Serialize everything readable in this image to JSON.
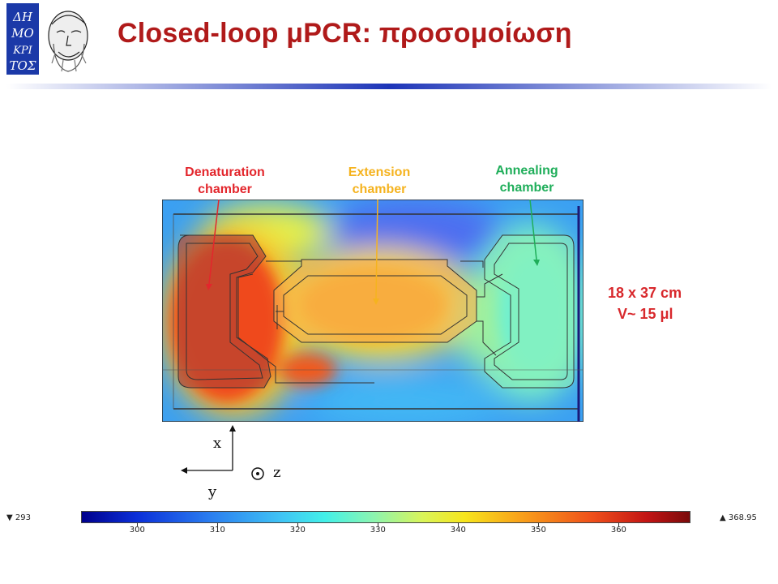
{
  "slide": {
    "title": "Closed-loop μPCR: προσομοίωση",
    "logo_text": [
      "ΔΗ",
      "ΜΟ",
      "ΚΡΙ",
      "ΤΟΣ"
    ]
  },
  "labels": {
    "denaturation": [
      "Denaturation",
      "chamber"
    ],
    "extension": [
      "Extension",
      "chamber"
    ],
    "annealing": [
      "Annealing",
      "chamber"
    ]
  },
  "dimensions": {
    "size": "18 x 37 cm",
    "volume": "V~ 15 μl"
  },
  "axes": {
    "x": "x",
    "y": "y",
    "z": "z"
  },
  "colorbar": {
    "min_label": "▼ 293",
    "max_label": "▲ 368.95",
    "min": 293,
    "max": 368.95,
    "ticks": [
      "300",
      "310",
      "320",
      "330",
      "340",
      "350",
      "360"
    ],
    "tick_values": [
      300,
      310,
      320,
      330,
      340,
      350,
      360
    ]
  },
  "colors": {
    "title": "#b01a1a",
    "denaturation": "#e3262c",
    "extension": "#f5b31f",
    "annealing": "#1fae5a",
    "dimensions": "#d8282c"
  }
}
